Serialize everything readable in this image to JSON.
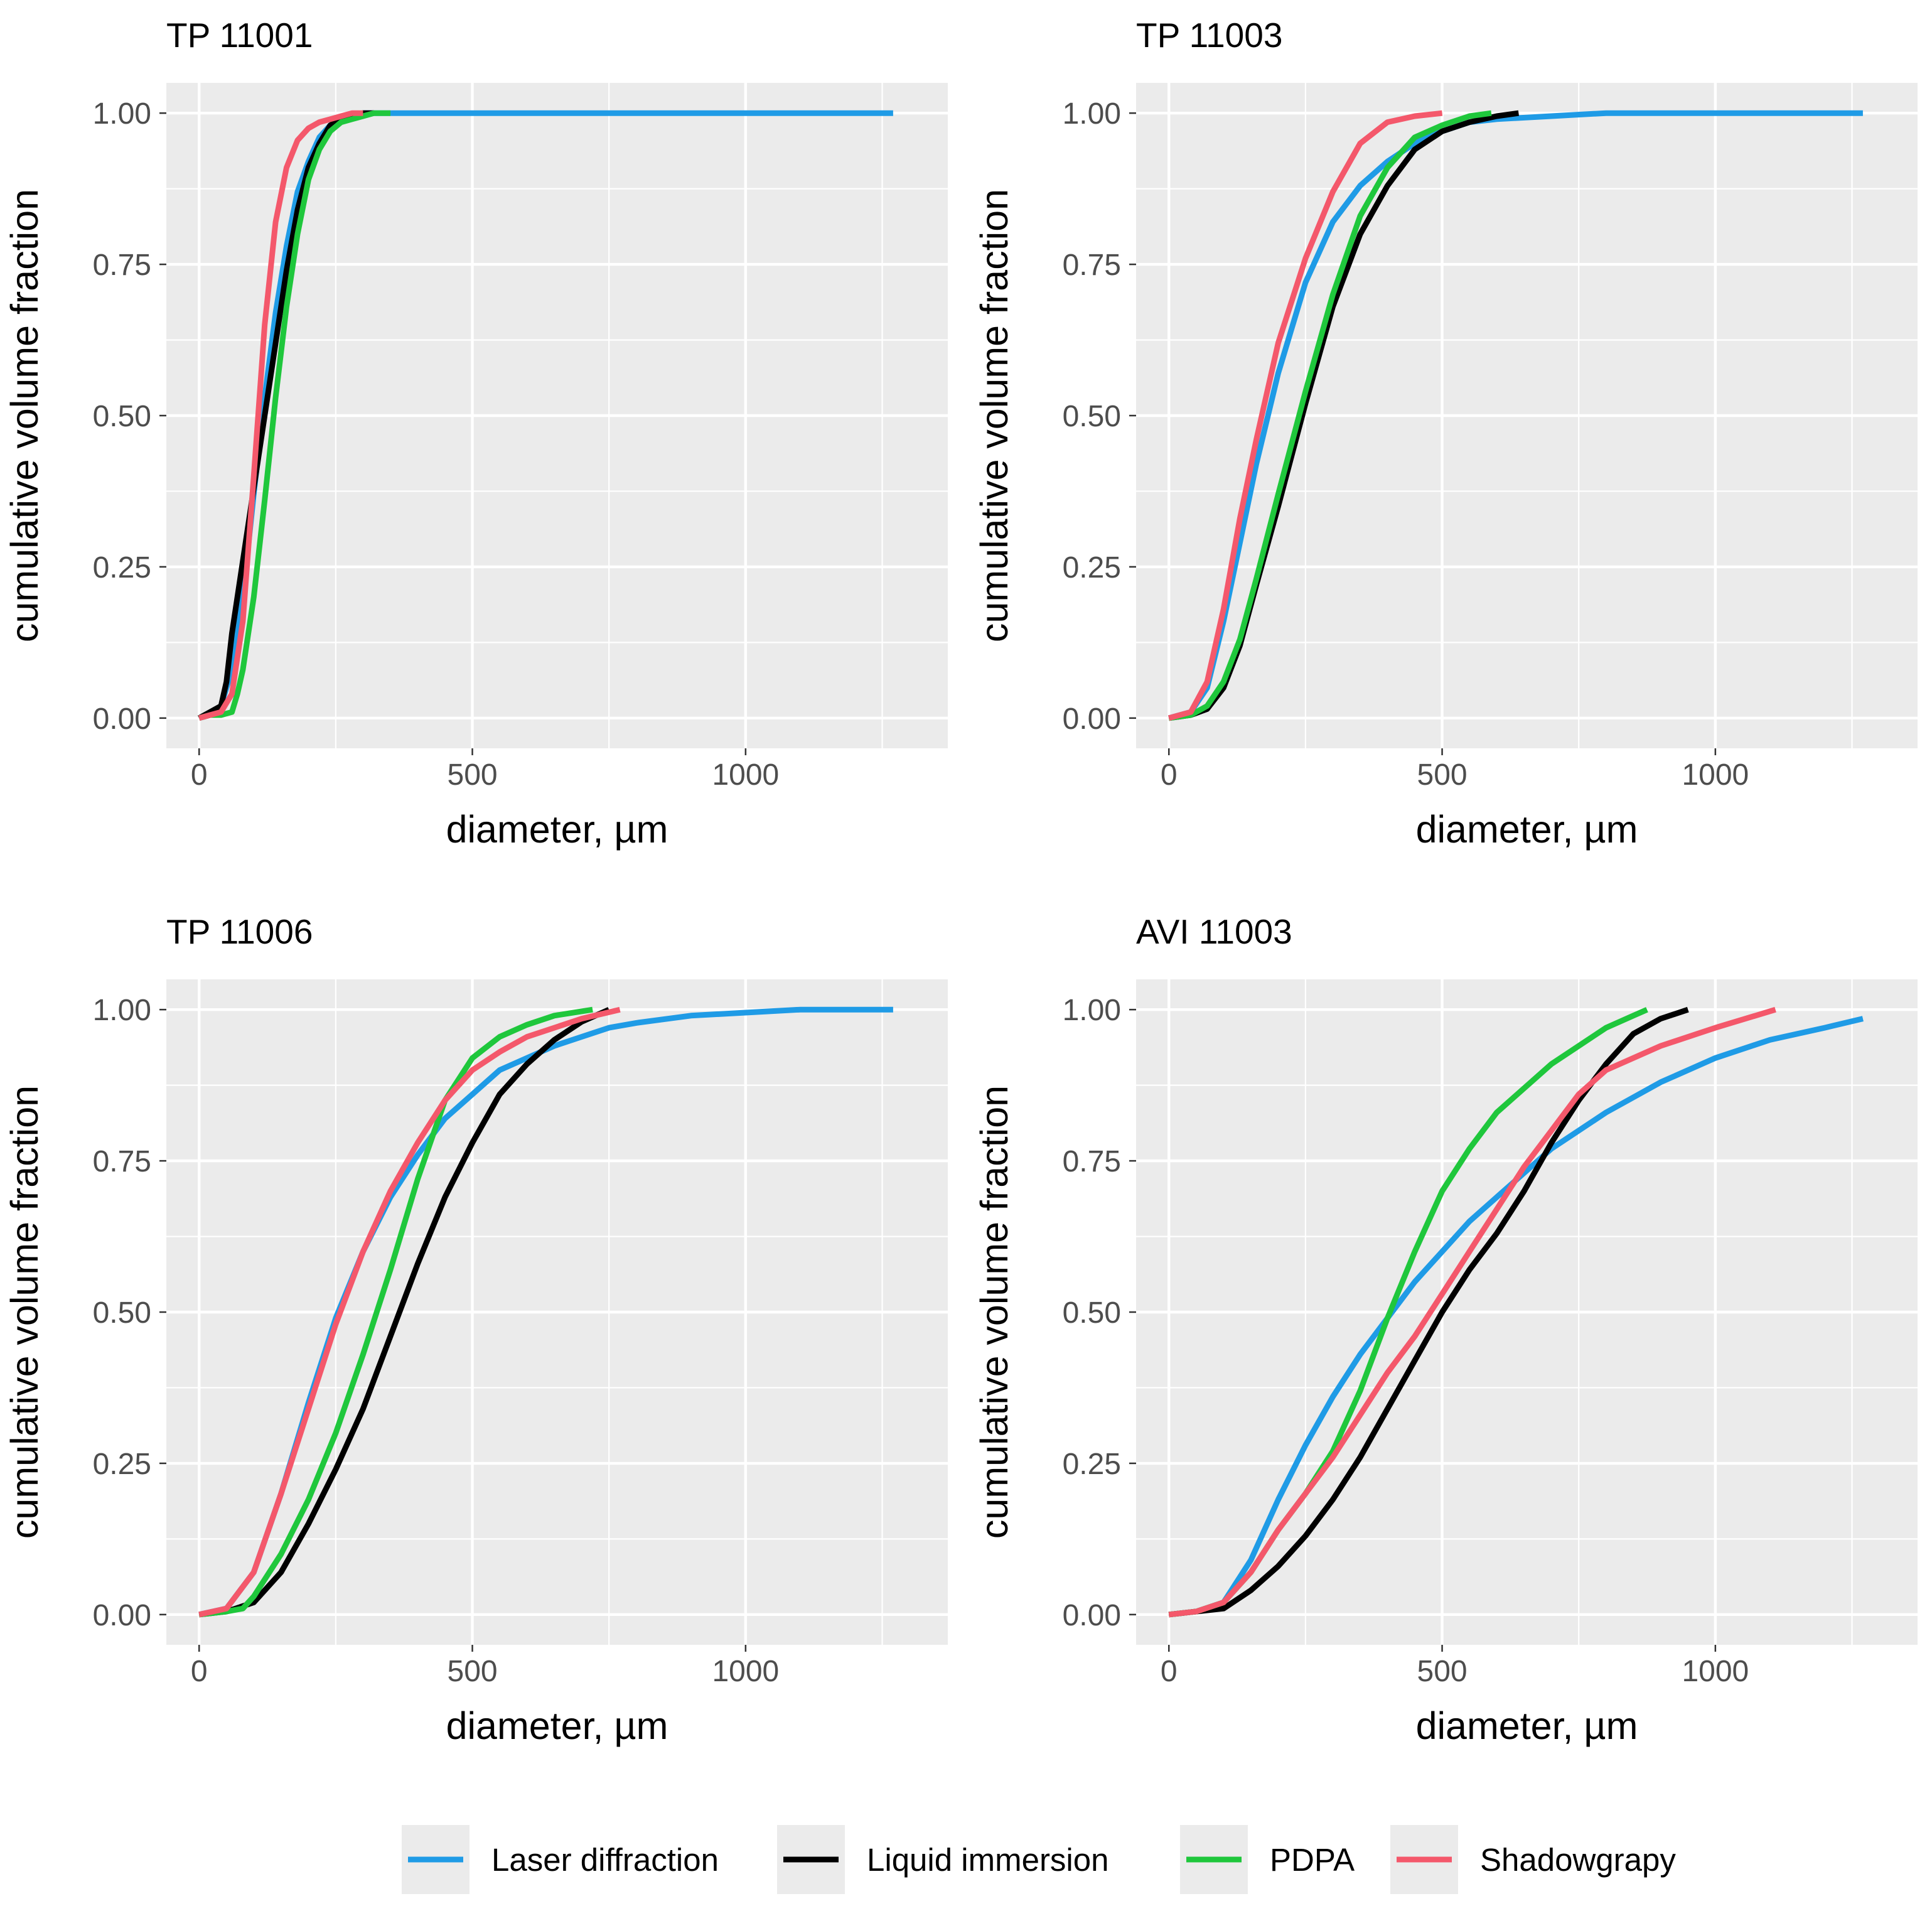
{
  "chart_data": [
    {
      "type": "line",
      "title": "TP 11001",
      "xlabel": "diameter, µm",
      "ylabel": "cumulative volume fraction",
      "xlim": [
        -60,
        1370
      ],
      "ylim": [
        -0.05,
        1.05
      ],
      "xticks": [
        0,
        500,
        1000
      ],
      "yticks": [
        0,
        0.25,
        0.5,
        0.75,
        1.0
      ],
      "xtick_labels": [
        "0",
        "500",
        "1000"
      ],
      "ytick_labels": [
        "0.00",
        "0.25",
        "0.50",
        "0.75",
        "1.00"
      ],
      "grid": true,
      "series": [
        {
          "name": "Laser diffraction",
          "x": [
            0,
            20,
            40,
            60,
            80,
            100,
            120,
            140,
            160,
            180,
            200,
            220,
            240,
            260,
            280,
            300,
            350,
            400,
            600,
            1000,
            1270
          ],
          "y": [
            0,
            0.005,
            0.02,
            0.08,
            0.2,
            0.37,
            0.53,
            0.67,
            0.78,
            0.87,
            0.92,
            0.96,
            0.98,
            0.99,
            0.995,
            1.0,
            1.0,
            1.0,
            1.0,
            1.0,
            1.0
          ]
        },
        {
          "name": "Liquid immersion",
          "x": [
            0,
            20,
            40,
            50,
            60,
            80,
            100,
            120,
            140,
            160,
            180,
            200,
            220,
            240,
            260,
            280,
            300,
            320
          ],
          "y": [
            0,
            0.01,
            0.02,
            0.06,
            0.14,
            0.26,
            0.38,
            0.5,
            0.62,
            0.74,
            0.84,
            0.91,
            0.95,
            0.98,
            0.99,
            0.995,
            1.0,
            1.0
          ]
        },
        {
          "name": "PDPA",
          "x": [
            0,
            20,
            40,
            60,
            70,
            80,
            100,
            120,
            140,
            160,
            180,
            200,
            220,
            240,
            260,
            280,
            300,
            320,
            350
          ],
          "y": [
            0,
            0.005,
            0.005,
            0.01,
            0.04,
            0.08,
            0.2,
            0.36,
            0.53,
            0.68,
            0.8,
            0.89,
            0.94,
            0.97,
            0.985,
            0.99,
            0.995,
            1.0,
            1.0
          ]
        },
        {
          "name": "Shadowgrapy",
          "x": [
            0,
            20,
            40,
            60,
            80,
            100,
            120,
            140,
            160,
            180,
            200,
            220,
            240,
            260,
            280,
            300
          ],
          "y": [
            0,
            0.005,
            0.01,
            0.04,
            0.16,
            0.4,
            0.65,
            0.82,
            0.91,
            0.955,
            0.975,
            0.985,
            0.99,
            0.995,
            1.0,
            1.0
          ]
        }
      ]
    },
    {
      "type": "line",
      "title": "TP 11003",
      "xlabel": "diameter, µm",
      "ylabel": "cumulative volume fraction",
      "xlim": [
        -60,
        1370
      ],
      "ylim": [
        -0.05,
        1.05
      ],
      "xticks": [
        0,
        500,
        1000
      ],
      "yticks": [
        0,
        0.25,
        0.5,
        0.75,
        1.0
      ],
      "xtick_labels": [
        "0",
        "500",
        "1000"
      ],
      "ytick_labels": [
        "0.00",
        "0.25",
        "0.50",
        "0.75",
        "1.00"
      ],
      "grid": true,
      "series": [
        {
          "name": "Laser diffraction",
          "x": [
            0,
            40,
            70,
            100,
            130,
            160,
            200,
            250,
            300,
            350,
            400,
            450,
            500,
            550,
            600,
            700,
            800,
            1000,
            1270
          ],
          "y": [
            0,
            0.01,
            0.05,
            0.16,
            0.29,
            0.42,
            0.57,
            0.72,
            0.82,
            0.88,
            0.92,
            0.95,
            0.97,
            0.985,
            0.99,
            0.995,
            1.0,
            1.0,
            1.0
          ]
        },
        {
          "name": "Liquid immersion",
          "x": [
            0,
            40,
            70,
            100,
            130,
            160,
            200,
            250,
            300,
            350,
            400,
            450,
            500,
            550,
            600,
            640
          ],
          "y": [
            0,
            0.005,
            0.015,
            0.05,
            0.12,
            0.22,
            0.35,
            0.52,
            0.68,
            0.8,
            0.88,
            0.94,
            0.97,
            0.985,
            0.995,
            1.0
          ]
        },
        {
          "name": "PDPA",
          "x": [
            0,
            40,
            70,
            100,
            130,
            160,
            200,
            250,
            300,
            350,
            400,
            450,
            500,
            550,
            590
          ],
          "y": [
            0,
            0.005,
            0.02,
            0.06,
            0.13,
            0.23,
            0.37,
            0.54,
            0.7,
            0.83,
            0.91,
            0.96,
            0.98,
            0.995,
            1.0
          ]
        },
        {
          "name": "Shadowgrapy",
          "x": [
            0,
            40,
            70,
            100,
            130,
            160,
            200,
            250,
            300,
            350,
            400,
            450,
            500
          ],
          "y": [
            0,
            0.01,
            0.06,
            0.18,
            0.33,
            0.46,
            0.62,
            0.76,
            0.87,
            0.95,
            0.985,
            0.995,
            1.0
          ]
        }
      ]
    },
    {
      "type": "line",
      "title": "TP 11006",
      "xlabel": "diameter, µm",
      "ylabel": "cumulative volume fraction",
      "xlim": [
        -60,
        1370
      ],
      "ylim": [
        -0.05,
        1.05
      ],
      "xticks": [
        0,
        500,
        1000
      ],
      "yticks": [
        0,
        0.25,
        0.5,
        0.75,
        1.0
      ],
      "xtick_labels": [
        "0",
        "500",
        "1000"
      ],
      "ytick_labels": [
        "0.00",
        "0.25",
        "0.50",
        "0.75",
        "1.00"
      ],
      "grid": true,
      "series": [
        {
          "name": "Laser diffraction",
          "x": [
            0,
            50,
            100,
            150,
            200,
            250,
            300,
            350,
            400,
            450,
            500,
            550,
            600,
            650,
            700,
            750,
            800,
            900,
            1000,
            1100,
            1270
          ],
          "y": [
            0,
            0.01,
            0.07,
            0.2,
            0.35,
            0.49,
            0.6,
            0.69,
            0.76,
            0.82,
            0.86,
            0.9,
            0.92,
            0.94,
            0.955,
            0.97,
            0.978,
            0.99,
            0.995,
            1.0,
            1.0
          ]
        },
        {
          "name": "Liquid immersion",
          "x": [
            0,
            50,
            100,
            150,
            200,
            250,
            300,
            350,
            400,
            450,
            500,
            550,
            600,
            650,
            700,
            750
          ],
          "y": [
            0,
            0.005,
            0.02,
            0.07,
            0.15,
            0.24,
            0.34,
            0.46,
            0.58,
            0.69,
            0.78,
            0.86,
            0.91,
            0.95,
            0.98,
            1.0
          ]
        },
        {
          "name": "PDPA",
          "x": [
            0,
            50,
            80,
            100,
            150,
            200,
            250,
            300,
            350,
            400,
            450,
            500,
            550,
            600,
            650,
            720
          ],
          "y": [
            0,
            0.005,
            0.01,
            0.03,
            0.1,
            0.19,
            0.3,
            0.43,
            0.57,
            0.72,
            0.85,
            0.92,
            0.955,
            0.975,
            0.99,
            1.0
          ]
        },
        {
          "name": "Shadowgrapy",
          "x": [
            0,
            50,
            100,
            150,
            200,
            250,
            300,
            350,
            400,
            450,
            500,
            550,
            600,
            650,
            700,
            770
          ],
          "y": [
            0,
            0.01,
            0.07,
            0.2,
            0.34,
            0.48,
            0.6,
            0.7,
            0.78,
            0.85,
            0.9,
            0.93,
            0.955,
            0.97,
            0.985,
            1.0
          ]
        }
      ]
    },
    {
      "type": "line",
      "title": "AVI 11003",
      "xlabel": "diameter, µm",
      "ylabel": "cumulative volume fraction",
      "xlim": [
        -60,
        1370
      ],
      "ylim": [
        -0.05,
        1.05
      ],
      "xticks": [
        0,
        500,
        1000
      ],
      "yticks": [
        0,
        0.25,
        0.5,
        0.75,
        1.0
      ],
      "xtick_labels": [
        "0",
        "500",
        "1000"
      ],
      "ytick_labels": [
        "0.00",
        "0.25",
        "0.50",
        "0.75",
        "1.00"
      ],
      "grid": true,
      "series": [
        {
          "name": "Laser diffraction",
          "x": [
            0,
            50,
            100,
            150,
            200,
            250,
            300,
            350,
            400,
            450,
            500,
            550,
            600,
            650,
            700,
            800,
            900,
            1000,
            1100,
            1200,
            1270
          ],
          "y": [
            0,
            0.005,
            0.02,
            0.09,
            0.19,
            0.28,
            0.36,
            0.43,
            0.49,
            0.55,
            0.6,
            0.65,
            0.69,
            0.73,
            0.77,
            0.83,
            0.88,
            0.92,
            0.95,
            0.97,
            0.985
          ]
        },
        {
          "name": "Liquid immersion",
          "x": [
            0,
            50,
            100,
            150,
            200,
            250,
            300,
            350,
            400,
            450,
            500,
            550,
            600,
            650,
            700,
            750,
            800,
            850,
            900,
            950
          ],
          "y": [
            0,
            0.005,
            0.01,
            0.04,
            0.08,
            0.13,
            0.19,
            0.26,
            0.34,
            0.42,
            0.5,
            0.57,
            0.63,
            0.7,
            0.78,
            0.85,
            0.91,
            0.96,
            0.985,
            1.0
          ]
        },
        {
          "name": "PDPA",
          "x": [
            0,
            50,
            100,
            150,
            200,
            250,
            300,
            350,
            400,
            450,
            500,
            550,
            600,
            650,
            700,
            750,
            800,
            850,
            875
          ],
          "y": [
            0,
            0.005,
            0.02,
            0.07,
            0.14,
            0.2,
            0.27,
            0.37,
            0.49,
            0.6,
            0.7,
            0.77,
            0.83,
            0.87,
            0.91,
            0.94,
            0.97,
            0.99,
            1.0
          ]
        },
        {
          "name": "Shadowgrapy",
          "x": [
            0,
            50,
            100,
            150,
            200,
            250,
            300,
            350,
            400,
            450,
            500,
            550,
            600,
            650,
            700,
            750,
            800,
            900,
            1000,
            1110
          ],
          "y": [
            0,
            0.005,
            0.02,
            0.07,
            0.14,
            0.2,
            0.26,
            0.33,
            0.4,
            0.46,
            0.53,
            0.6,
            0.67,
            0.74,
            0.8,
            0.86,
            0.9,
            0.94,
            0.97,
            1.0
          ]
        }
      ]
    }
  ],
  "legend": {
    "entries": [
      {
        "label": "Laser diffraction",
        "color": "#1f9be6"
      },
      {
        "label": "Liquid immersion",
        "color": "#000000"
      },
      {
        "label": "PDPA",
        "color": "#1fc73c"
      },
      {
        "label": "Shadowgrapy",
        "color": "#f4586b"
      }
    ],
    "position": "bottom"
  },
  "colors": {
    "panel_background": "#ebebeb",
    "grid": "#ffffff",
    "tick_label": "#4d4d4d"
  }
}
